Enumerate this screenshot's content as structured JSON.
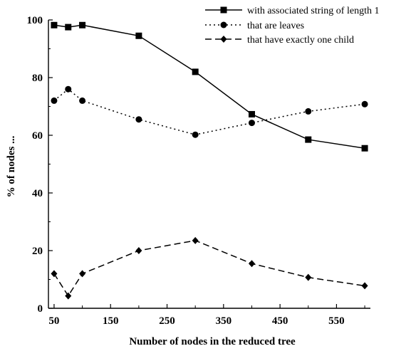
{
  "chart_data": {
    "type": "line",
    "title": "",
    "xlabel": "Number of nodes in the reduced tree",
    "ylabel": "% of nodes ...",
    "xlim": [
      40,
      610
    ],
    "ylim": [
      0,
      100
    ],
    "xticks": [
      50,
      150,
      250,
      350,
      450,
      550
    ],
    "xticks_minor": [
      100,
      200,
      300,
      400,
      500,
      600
    ],
    "yticks": [
      0,
      20,
      40,
      60,
      80,
      100
    ],
    "grid": false,
    "legend_position": "top-right",
    "series": [
      {
        "name": "with associated string of length 1",
        "marker": "square",
        "line_style": "solid",
        "x": [
          50,
          75,
          100,
          200,
          300,
          400,
          500,
          600
        ],
        "y": [
          98.2,
          97.5,
          98.2,
          94.5,
          82.0,
          67.3,
          58.5,
          55.5
        ]
      },
      {
        "name": "that are leaves",
        "marker": "circle",
        "line_style": "dotted",
        "x": [
          50,
          75,
          100,
          200,
          300,
          400,
          500,
          600
        ],
        "y": [
          72.0,
          76.0,
          72.0,
          65.5,
          60.2,
          64.3,
          68.3,
          70.8
        ]
      },
      {
        "name": "that have exactly one child",
        "marker": "diamond",
        "line_style": "dashed",
        "x": [
          50,
          75,
          100,
          200,
          300,
          400,
          500,
          600
        ],
        "y": [
          12.0,
          4.3,
          12.0,
          20.0,
          23.5,
          15.5,
          10.7,
          7.8
        ]
      }
    ]
  }
}
